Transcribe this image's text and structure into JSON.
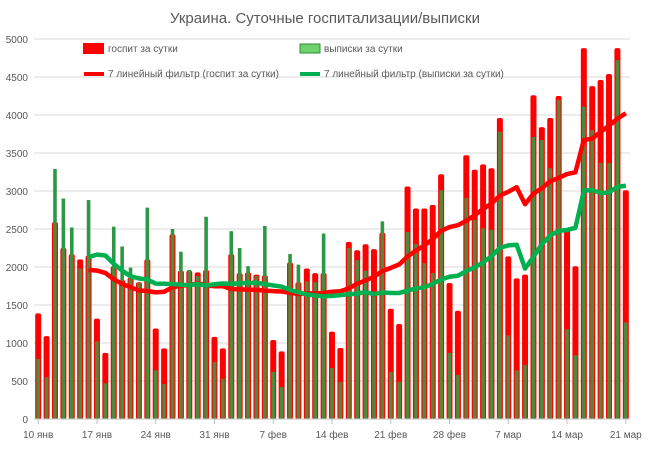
{
  "chart_data": {
    "type": "bar",
    "title": "Украина. Суточные госпитализации/выписки",
    "ylim": [
      0,
      5000
    ],
    "yticks": [
      "0",
      "500",
      "1000",
      "1500",
      "2000",
      "2500",
      "3000",
      "3500",
      "4000",
      "4500",
      "5000"
    ],
    "xtick_labels": [
      "10 янв",
      "17 янв",
      "24 янв",
      "31 янв",
      "7 фев",
      "14 фев",
      "21 фев",
      "28 фев",
      "7 мар",
      "14 мар",
      "21 мар"
    ],
    "grid": true,
    "legend_position": "top",
    "colors": {
      "hosp": "#ff0000",
      "disch_bar": "#4f8a3c",
      "disch_legend": "#6fd26f",
      "hosp_line": "#ff0000",
      "disch_line": "#00b050"
    },
    "dates": [
      "10 янв",
      "11 янв",
      "12 янв",
      "13 янв",
      "14 янв",
      "15 янв",
      "16 янв",
      "17 янв",
      "18 янв",
      "19 янв",
      "20 янв",
      "21 янв",
      "22 янв",
      "23 янв",
      "24 янв",
      "25 янв",
      "26 янв",
      "27 янв",
      "28 янв",
      "29 янв",
      "30 янв",
      "31 янв",
      "1 фев",
      "2 фев",
      "3 фев",
      "4 фев",
      "5 фев",
      "6 фев",
      "7 фев",
      "8 фев",
      "9 фев",
      "10 фев",
      "11 фев",
      "12 фев",
      "13 фев",
      "14 фев",
      "15 фев",
      "16 фев",
      "17 фев",
      "18 фев",
      "19 фев",
      "20 фев",
      "21 фев",
      "22 фев",
      "23 фев",
      "24 фев",
      "25 фев",
      "26 фев",
      "27 фев",
      "28 фев",
      "1 мар",
      "2 мар",
      "3 мар",
      "4 мар",
      "5 мар",
      "6 мар",
      "7 мар",
      "8 мар",
      "9 мар",
      "10 мар",
      "11 мар",
      "12 мар",
      "13 мар",
      "14 мар",
      "15 мар",
      "16 мар",
      "17 мар",
      "18 мар",
      "19 мар",
      "20 мар",
      "21 мар"
    ],
    "series": [
      {
        "name": "госпит за сутки",
        "values": [
          1390,
          1090,
          2590,
          2250,
          2170,
          2100,
          2150,
          1320,
          870,
          2010,
          1830,
          1860,
          1800,
          2100,
          1190,
          930,
          2430,
          1950,
          1950,
          1930,
          1960,
          1080,
          930,
          2170,
          1920,
          1930,
          1900,
          1890,
          1040,
          890,
          2060,
          1800,
          1980,
          1920,
          1920,
          1150,
          935,
          2330,
          2220,
          2300,
          2235,
          2450,
          1450,
          1250,
          3060,
          2770,
          2770,
          2815,
          3220,
          1790,
          1425,
          3470,
          3280,
          3350,
          3300,
          3960,
          2140,
          1850,
          1900,
          4260,
          3840,
          3960,
          4250,
          2500,
          2010,
          4880,
          4380,
          4460,
          4540,
          4880,
          3010
        ]
      },
      {
        "name": "выписки за сутки",
        "values": [
          790,
          550,
          3290,
          2900,
          2520,
          1980,
          2880,
          1020,
          470,
          2530,
          2270,
          1990,
          1790,
          2780,
          640,
          460,
          2500,
          2200,
          1960,
          1880,
          2660,
          750,
          530,
          2470,
          2250,
          2010,
          1880,
          2540,
          620,
          420,
          2170,
          2030,
          1810,
          1800,
          2440,
          670,
          490,
          2250,
          2090,
          1950,
          1610,
          2600,
          620,
          490,
          2460,
          2300,
          2050,
          1920,
          3010,
          870,
          580,
          2910,
          2620,
          2510,
          2490,
          3780,
          1100,
          640,
          710,
          3710,
          3670,
          3300,
          4200,
          1180,
          840,
          4110,
          3800,
          3370,
          3370,
          4720,
          1270
        ]
      },
      {
        "name": "7 линейный фильтр (госпит за сутки)",
        "type": "moving-average",
        "period": 7,
        "of": "госпит за сутки"
      },
      {
        "name": "7 линейный фильтр (выписки за сутки)",
        "type": "moving-average",
        "period": 7,
        "of": "выписки за сутки"
      }
    ]
  }
}
